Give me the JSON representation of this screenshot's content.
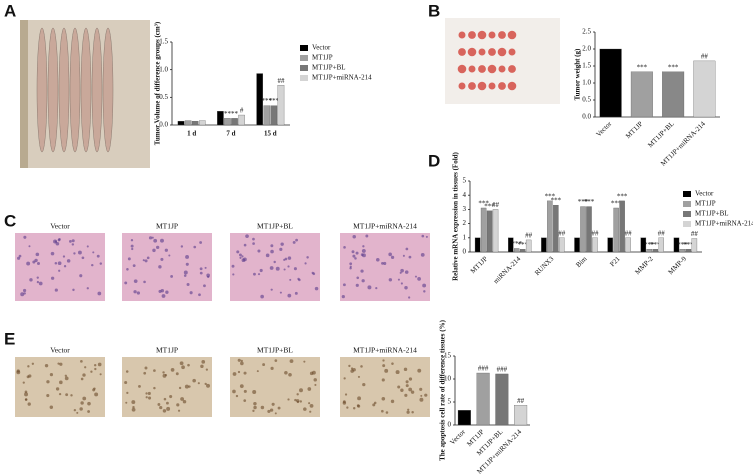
{
  "panels": [
    "A",
    "B",
    "C",
    "D",
    "E"
  ],
  "stain_captions": [
    "Vector",
    "MT1JP",
    "MT1JP+BL",
    "MT1JP+miRNA-214"
  ],
  "ihc_captions": [
    "Vector",
    "MT1JP",
    "MT1JP+BL",
    "MT1JP+miRNA-214"
  ],
  "chart_data": [
    {
      "type": "bar",
      "y_label": "Tumor Volume of difference groups (cm³)",
      "categories": [
        "1 d",
        "7 d",
        "15 d"
      ],
      "series": [
        {
          "name": "Vector",
          "color": "#000000",
          "values": [
            0.07,
            0.25,
            0.93
          ],
          "annotations": [
            null,
            null,
            null
          ]
        },
        {
          "name": "MT1JP",
          "color": "#a0a0a0",
          "values": [
            0.08,
            0.12,
            0.35
          ],
          "annotations": [
            null,
            "**",
            "***"
          ]
        },
        {
          "name": "MT1JP+BL",
          "color": "#777777",
          "values": [
            0.07,
            0.12,
            0.35
          ],
          "annotations": [
            null,
            "**",
            "***"
          ]
        },
        {
          "name": "MT1JP+miRNA-214",
          "color": "#d4d4d4",
          "values": [
            0.08,
            0.18,
            0.72
          ],
          "annotations": [
            null,
            "#",
            "##"
          ]
        }
      ],
      "ylim": [
        0,
        1.5
      ],
      "yticks": [
        {
          "value": 0,
          "label": "0.0"
        },
        0.5,
        {
          "value": 1,
          "label": "1.0"
        },
        1.5
      ],
      "legend": "right"
    },
    {
      "type": "bar",
      "y_label": "Tumor weight (g)",
      "categories": [
        "Vector",
        "MT1JP",
        "MT1JP+BL",
        "MT1JP+miRNA-214"
      ],
      "values": [
        2.0,
        1.33,
        1.33,
        1.65
      ],
      "colors": [
        "#000000",
        "#a0a0a0",
        "#888888",
        "#d4d4d4"
      ],
      "annotations": [
        null,
        "***",
        "***",
        "##"
      ],
      "ylim": [
        0,
        2.5
      ],
      "yticks": [
        {
          "value": 0,
          "label": "0.0"
        },
        0.5,
        {
          "value": 1,
          "label": "1.0"
        },
        1.5,
        {
          "value": 2,
          "label": "2.0"
        },
        2.5
      ]
    },
    {
      "type": "bar",
      "y_label": "Relative mRNA expression in tissues (Fold)",
      "categories": [
        "MT1JP",
        "miRNA-214",
        "RUNX3",
        "Bim",
        "P21",
        "MMP-2",
        "MMP-9"
      ],
      "series": [
        {
          "name": "Vector",
          "color": "#000000",
          "values": [
            1,
            1,
            1,
            1,
            1,
            1,
            1
          ],
          "annotations": [
            null,
            null,
            null,
            null,
            null,
            null,
            null
          ]
        },
        {
          "name": "MT1JP",
          "color": "#a0a0a0",
          "values": [
            3.1,
            0.25,
            3.6,
            3.2,
            3.1,
            0.2,
            0.2
          ],
          "annotations": [
            "***",
            "***",
            "***",
            "***",
            "***",
            "***",
            "***"
          ]
        },
        {
          "name": "MT1JP+BL",
          "color": "#777777",
          "values": [
            2.9,
            0.2,
            3.3,
            3.2,
            3.6,
            0.2,
            0.2
          ],
          "annotations": [
            "***",
            "***",
            "***",
            "***",
            "***",
            "***",
            "***"
          ]
        },
        {
          "name": "MT1JP+miRNA-214",
          "color": "#d4d4d4",
          "values": [
            3.0,
            0.85,
            1.0,
            1.0,
            1.0,
            1.0,
            0.95
          ],
          "annotations": [
            "##",
            "##",
            "##",
            "##",
            "##",
            "##",
            "##"
          ]
        }
      ],
      "ylim": [
        0,
        5
      ],
      "yticks": [
        0,
        1,
        2,
        3,
        4,
        5
      ],
      "legend": "upper right"
    },
    {
      "type": "bar",
      "y_label": "The apoptosis cell rate of difference tissues (%)",
      "categories": [
        "Vector",
        "MT1JP",
        "MT1JP+BL",
        "MT1JP+miRNA-214"
      ],
      "values": [
        3.2,
        11.3,
        11.1,
        4.3
      ],
      "colors": [
        "#000000",
        "#a0a0a0",
        "#777777",
        "#d4d4d4"
      ],
      "annotations": [
        null,
        "###",
        "###",
        "##"
      ],
      "ylim": [
        0,
        15
      ],
      "yticks": [
        0,
        5,
        10,
        15
      ]
    }
  ]
}
